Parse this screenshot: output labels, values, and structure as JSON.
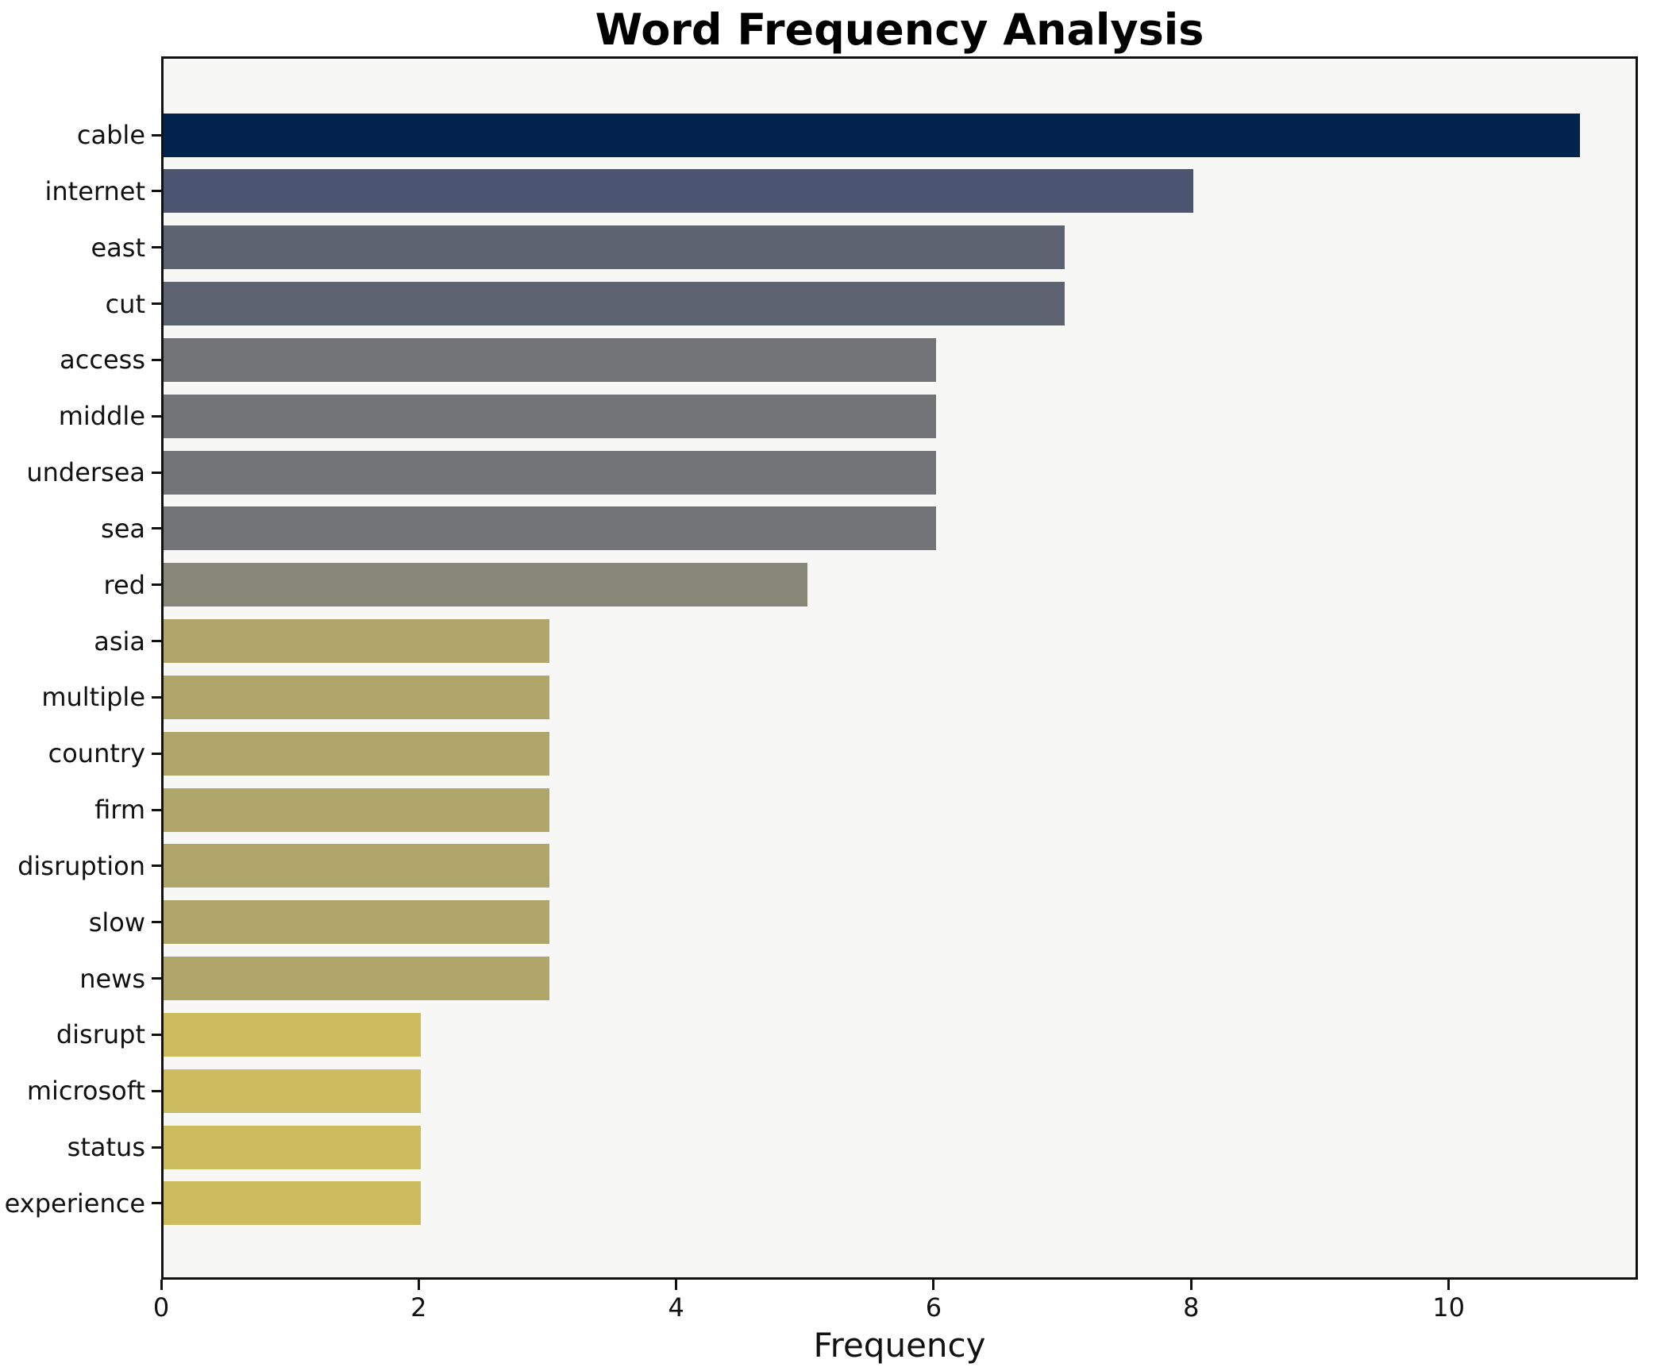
{
  "chart_data": {
    "type": "bar",
    "orientation": "horizontal",
    "title": "Word Frequency Analysis",
    "xlabel": "Frequency",
    "ylabel": "",
    "categories": [
      "cable",
      "internet",
      "east",
      "cut",
      "access",
      "middle",
      "undersea",
      "sea",
      "red",
      "asia",
      "multiple",
      "country",
      "firm",
      "disruption",
      "slow",
      "news",
      "disrupt",
      "microsoft",
      "status",
      "experience"
    ],
    "values": [
      11,
      8,
      7,
      7,
      6,
      6,
      6,
      6,
      5,
      3,
      3,
      3,
      3,
      3,
      3,
      3,
      2,
      2,
      2,
      2
    ],
    "bar_colors": [
      "#02234e",
      "#4b5471",
      "#5e6371",
      "#5e6371",
      "#717375",
      "#717375",
      "#717375",
      "#717375",
      "#868777",
      "#b1a669",
      "#b1a669",
      "#b1a669",
      "#b1a669",
      "#b1a669",
      "#b1a669",
      "#b1a669",
      "#ccba5f",
      "#ccba5f",
      "#ccba5f",
      "#ccba5f"
    ],
    "xticks": [
      0,
      2,
      4,
      6,
      8,
      10
    ],
    "xlim": [
      0,
      11.47
    ],
    "grid": false,
    "legend": null,
    "plot_background": "#f7f7f5",
    "figure_background": "#ffffff",
    "spine_color": "#111111",
    "text_color": "#111111"
  }
}
